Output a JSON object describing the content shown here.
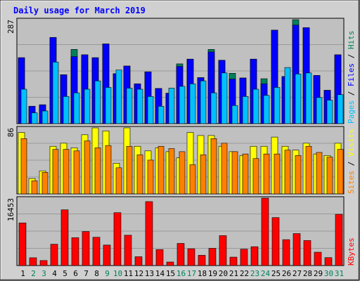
{
  "chart_data": {
    "type": "bar",
    "title": "Daily usage for March 2019",
    "categories": [
      "1",
      "2",
      "3",
      "4",
      "5",
      "6",
      "7",
      "8",
      "9",
      "10",
      "11",
      "12",
      "13",
      "14",
      "15",
      "16",
      "17",
      "18",
      "19",
      "20",
      "21",
      "22",
      "23",
      "24",
      "25",
      "26",
      "27",
      "28",
      "29",
      "30",
      "31"
    ],
    "weekend_days": [
      "2",
      "3",
      "9",
      "10",
      "16",
      "17",
      "23",
      "24",
      "30",
      "31"
    ],
    "colors": {
      "title": "#0000FF",
      "hits": "#00805C",
      "files": "#0000FF",
      "pages": "#00C0FF",
      "visits": "#FFFF00",
      "sites": "#FF8000",
      "kbytes": "#FF0000",
      "weekday_label": "#000000",
      "weekend_label": "#00805C",
      "panel_bg": "#C0C0C0",
      "frame_bg": "#D0D0D0",
      "border": "#000000"
    },
    "panels": [
      {
        "id": "hits_files_pages",
        "ymax_label": "287",
        "ymax": 287,
        "legend": [
          {
            "label": "Pages",
            "color": "#00C0FF"
          },
          {
            "label": "Files",
            "color": "#0000FF"
          },
          {
            "label": "Hits",
            "color": "#00805C"
          }
        ],
        "series": [
          {
            "name": "Hits",
            "values": [
              182,
              48,
              52,
              238,
              135,
              205,
              190,
              182,
              220,
              138,
              159,
              110,
              143,
              97,
              84,
              165,
              178,
              127,
              205,
              175,
              139,
              126,
              178,
              124,
              258,
              130,
              287,
              265,
              133,
              92,
              190
            ]
          },
          {
            "name": "Files",
            "values": [
              182,
              48,
              52,
              238,
              135,
              185,
              190,
              182,
              220,
              138,
              159,
              110,
              143,
              97,
              84,
              158,
              178,
              127,
              198,
              175,
              123,
              126,
              178,
              110,
              258,
              130,
              272,
              265,
              133,
              92,
              190
            ]
          },
          {
            "name": "Pages",
            "values": [
              95,
              30,
              35,
              170,
              75,
              85,
              95,
              118,
              100,
              148,
              98,
              95,
              75,
              48,
              98,
              103,
              110,
              118,
              85,
              140,
              50,
              75,
              95,
              78,
              100,
              155,
              137,
              140,
              72,
              65,
              80
            ]
          }
        ]
      },
      {
        "id": "visits_sites",
        "ymax_label": "86",
        "ymax": 86,
        "legend": [
          {
            "label": "Sites",
            "color": "#FF8000"
          },
          {
            "label": "Visits",
            "color": "#FFFF00"
          }
        ],
        "series": [
          {
            "name": "Visits",
            "values": [
              80,
              20,
              30,
              62,
              66,
              60,
              77,
              86,
              82,
              40,
              86,
              62,
              56,
              60,
              55,
              47,
              80,
              76,
              76,
              62,
              55,
              50,
              62,
              62,
              74,
              62,
              57,
              66,
              52,
              50,
              66
            ]
          },
          {
            "name": "Sites",
            "values": [
              72,
              17,
              28,
              58,
              58,
              56,
              69,
              60,
              63,
              34,
              62,
              51,
              44,
              62,
              59,
              55,
              38,
              51,
              72,
              66,
              55,
              52,
              46,
              52,
              52,
              57,
              50,
              62,
              54,
              48,
              58
            ]
          }
        ]
      },
      {
        "id": "kbytes",
        "ymax_label": "16453",
        "ymax": 16453,
        "legend": [
          {
            "label": "KBytes",
            "color": "#FF0000"
          }
        ],
        "series": [
          {
            "name": "KBytes",
            "values": [
              10400,
              1900,
              1220,
              5200,
              13600,
              6800,
              8300,
              6900,
              5000,
              12900,
              7400,
              2150,
              15600,
              3900,
              860,
              5400,
              4100,
              2500,
              4200,
              7300,
              2050,
              4000,
              4600,
              16453,
              11700,
              6320,
              7800,
              6100,
              3250,
              1940,
              12500
            ]
          }
        ]
      }
    ]
  }
}
